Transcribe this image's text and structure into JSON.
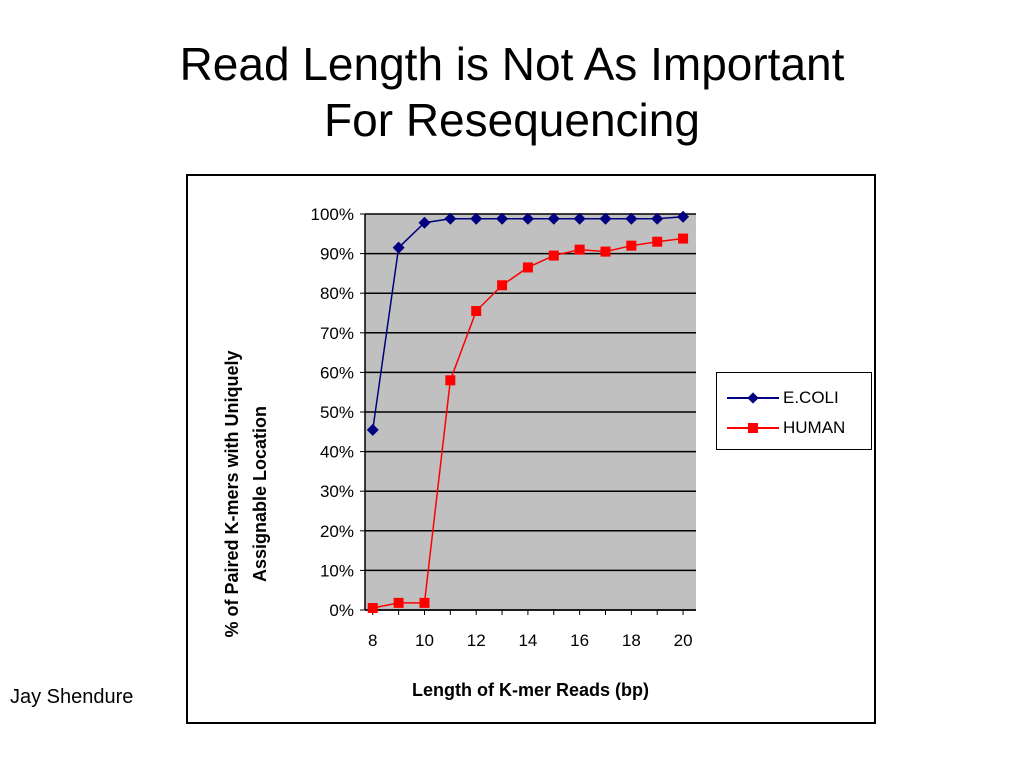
{
  "slide": {
    "title_line1": "Read Length is Not As Important",
    "title_line2": "For Resequencing",
    "author": "Jay Shendure"
  },
  "chart_data": {
    "type": "line",
    "x": [
      8,
      9,
      10,
      11,
      12,
      13,
      14,
      15,
      16,
      17,
      18,
      19,
      20
    ],
    "xticks": [
      "8",
      "10",
      "12",
      "14",
      "16",
      "18",
      "20"
    ],
    "yticks": [
      "0%",
      "10%",
      "20%",
      "30%",
      "40%",
      "50%",
      "60%",
      "70%",
      "80%",
      "90%",
      "100%"
    ],
    "series": [
      {
        "name": "E.COLI",
        "color": "#000080",
        "marker": "diamond",
        "values": [
          45.5,
          91.5,
          97.8,
          98.8,
          98.8,
          98.8,
          98.8,
          98.8,
          98.8,
          98.8,
          98.8,
          98.8,
          99.3
        ]
      },
      {
        "name": "HUMAN",
        "color": "#ff0000",
        "marker": "square",
        "values": [
          0.5,
          1.8,
          1.8,
          58.0,
          75.5,
          82.0,
          86.5,
          89.5,
          91.0,
          90.5,
          92.0,
          93.0,
          93.8
        ]
      }
    ],
    "xlabel": "Length of K-mer Reads (bp)",
    "ylabel_line1": "% of Paired K-mers with Uniquely",
    "ylabel_line2": "Assignable Location",
    "xlim": [
      7.7,
      20.5
    ],
    "ylim": [
      0,
      100
    ],
    "plot_background": "#c0c0c0",
    "grid": true,
    "legend_position": "right"
  }
}
